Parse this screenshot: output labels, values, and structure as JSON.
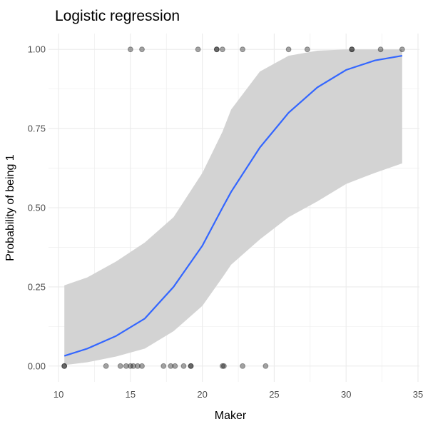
{
  "chart_data": {
    "type": "scatter",
    "title": "Logistic regression",
    "xlabel": "Maker",
    "ylabel": "Probability of being 1",
    "xlim": [
      9.3,
      35.1
    ],
    "ylim": [
      -0.05,
      1.05
    ],
    "x_ticks": [
      10,
      15,
      20,
      25,
      30,
      35
    ],
    "y_ticks": [
      0,
      0.25,
      0.5,
      0.75,
      1
    ],
    "x_tick_labels": [
      "10",
      "15",
      "20",
      "25",
      "30",
      "35"
    ],
    "y_tick_labels": [
      "0.00",
      "0.25",
      "0.50",
      "0.75",
      "1.00"
    ],
    "grid": true,
    "colors": {
      "fit_line": "#3366FF",
      "ribbon": "#d3d3d3",
      "points": "#000000",
      "grid": "#ebebeb"
    },
    "points": {
      "x": [
        10.4,
        10.4,
        13.3,
        14.3,
        14.7,
        15.0,
        15.2,
        15.5,
        15.8,
        17.3,
        17.8,
        18.1,
        18.7,
        19.2,
        19.2,
        21.4,
        21.5,
        22.8,
        24.4,
        15.0,
        15.8,
        19.7,
        21.0,
        21.0,
        21.4,
        22.8,
        26.0,
        27.3,
        30.4,
        30.4,
        32.4,
        33.9
      ],
      "y": [
        0,
        0,
        0,
        0,
        0,
        0,
        0,
        0,
        0,
        0,
        0,
        0,
        0,
        0,
        0,
        0,
        0,
        0,
        0,
        1,
        1,
        1,
        1,
        1,
        1,
        1,
        1,
        1,
        1,
        1,
        1,
        1
      ]
    },
    "fit": {
      "x": [
        10.4,
        12,
        14,
        16,
        18,
        20,
        21.4,
        22,
        24,
        26,
        28,
        30,
        32,
        33.9
      ],
      "y": [
        0.032,
        0.055,
        0.095,
        0.15,
        0.25,
        0.38,
        0.5,
        0.55,
        0.69,
        0.8,
        0.88,
        0.935,
        0.965,
        0.98
      ],
      "lower": [
        0.003,
        0.012,
        0.03,
        0.055,
        0.11,
        0.19,
        0.28,
        0.32,
        0.4,
        0.47,
        0.52,
        0.575,
        0.61,
        0.64
      ],
      "upper": [
        0.255,
        0.28,
        0.33,
        0.39,
        0.47,
        0.61,
        0.74,
        0.81,
        0.93,
        0.98,
        0.996,
        1.0,
        1.0,
        1.0
      ]
    }
  }
}
